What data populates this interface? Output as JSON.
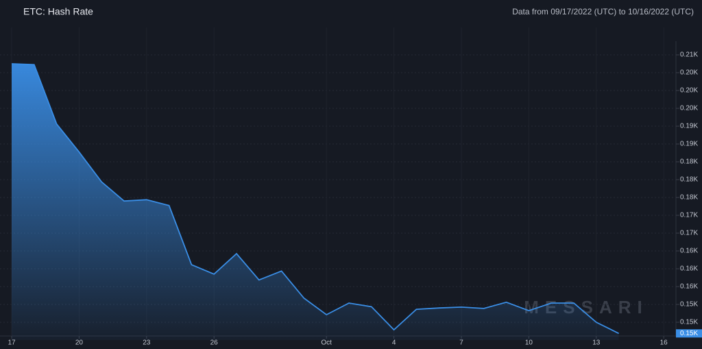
{
  "chart_data": {
    "type": "area",
    "title": "ETC: Hash Rate",
    "subtitle": "Data from 09/17/2022 (UTC) to 10/16/2022 (UTC)",
    "watermark": "MESSARI",
    "x": [
      "2022-09-17",
      "2022-09-18",
      "2022-09-19",
      "2022-09-20",
      "2022-09-21",
      "2022-09-22",
      "2022-09-23",
      "2022-09-24",
      "2022-09-25",
      "2022-09-26",
      "2022-09-27",
      "2022-09-28",
      "2022-09-29",
      "2022-09-30",
      "2022-10-01",
      "2022-10-02",
      "2022-10-03",
      "2022-10-04",
      "2022-10-05",
      "2022-10-06",
      "2022-10-07",
      "2022-10-08",
      "2022-10-09",
      "2022-10-10",
      "2022-10-11",
      "2022-10-12",
      "2022-10-13",
      "2022-10-14"
    ],
    "series": [
      {
        "name": "Hash Rate",
        "color": "#3a8ee6",
        "values": [
          206.0,
          205.8,
          192.5,
          186.2,
          179.5,
          175.2,
          175.5,
          174.2,
          160.9,
          158.8,
          163.4,
          157.5,
          159.5,
          153.4,
          149.7,
          152.3,
          151.5,
          146.3,
          150.9,
          151.2,
          151.4,
          151.1,
          152.5,
          150.6,
          152.3,
          152.3,
          148.0,
          145.5
        ]
      }
    ],
    "last_value_label": "0.15K",
    "xlim": [
      "2022-09-17",
      "2022-10-17"
    ],
    "xticks": [
      {
        "value": "2022-09-17",
        "label": "17"
      },
      {
        "value": "2022-09-20",
        "label": "20"
      },
      {
        "value": "2022-09-23",
        "label": "23"
      },
      {
        "value": "2022-09-26",
        "label": "26"
      },
      {
        "value": "2022-10-01",
        "label": "Oct"
      },
      {
        "value": "2022-10-04",
        "label": "4"
      },
      {
        "value": "2022-10-07",
        "label": "7"
      },
      {
        "value": "2022-10-10",
        "label": "10"
      },
      {
        "value": "2022-10-13",
        "label": "13"
      },
      {
        "value": "2022-10-16",
        "label": "16"
      }
    ],
    "ylim": [
      144,
      210
    ],
    "yticks": [
      {
        "value": 148,
        "label": "0.15K"
      },
      {
        "value": 152,
        "label": "0.15K"
      },
      {
        "value": 156,
        "label": "0.16K"
      },
      {
        "value": 160,
        "label": "0.16K"
      },
      {
        "value": 164,
        "label": "0.16K"
      },
      {
        "value": 168,
        "label": "0.17K"
      },
      {
        "value": 172,
        "label": "0.17K"
      },
      {
        "value": 176,
        "label": "0.18K"
      },
      {
        "value": 180,
        "label": "0.18K"
      },
      {
        "value": 184,
        "label": "0.18K"
      },
      {
        "value": 188,
        "label": "0.19K"
      },
      {
        "value": 192,
        "label": "0.19K"
      },
      {
        "value": 196,
        "label": "0.20K"
      },
      {
        "value": 200,
        "label": "0.20K"
      },
      {
        "value": 204,
        "label": "0.20K"
      },
      {
        "value": 208,
        "label": "0.21K"
      }
    ],
    "grid": true
  }
}
